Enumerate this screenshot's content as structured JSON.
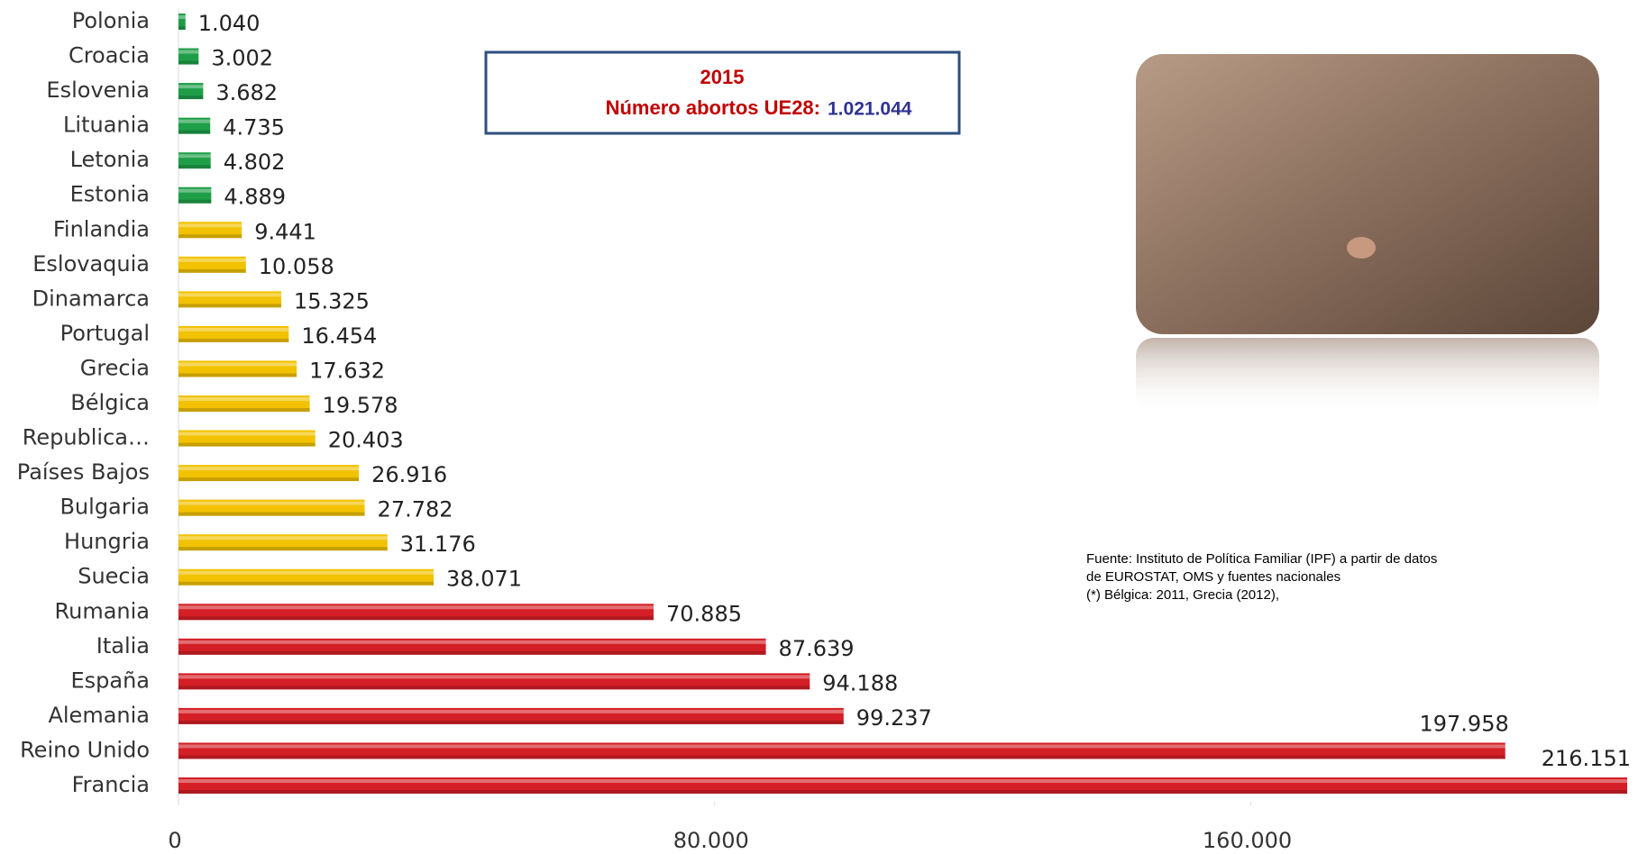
{
  "chart_data": {
    "type": "bar",
    "orientation": "horizontal",
    "categories": [
      "Polonia",
      "Croacia",
      "Eslovenia",
      "Lituania",
      "Letonia",
      "Estonia",
      "Finlandia",
      "Eslovaquia",
      "Dinamarca",
      "Portugal",
      "Grecia",
      "Bélgica",
      "Republica…",
      "Países Bajos",
      "Bulgaria",
      "Hungria",
      "Suecia",
      "Rumania",
      "Italia",
      "España",
      "Alemania",
      "Reino Unido",
      "Francia"
    ],
    "values": [
      1040,
      3002,
      3682,
      4735,
      4802,
      4889,
      9441,
      10058,
      15325,
      16454,
      17632,
      19578,
      20403,
      26916,
      27782,
      31176,
      38071,
      70885,
      87639,
      94188,
      99237,
      197958,
      216151
    ],
    "value_labels": [
      "1.040",
      "3.002",
      "3.682",
      "4.735",
      "4.802",
      "4.889",
      "9.441",
      "10.058",
      "15.325",
      "16.454",
      "17.632",
      "19.578",
      "20.403",
      "26.916",
      "27.782",
      "31.176",
      "38.071",
      "70.885",
      "87.639",
      "94.188",
      "99.237",
      "197.958",
      "216.151"
    ],
    "colors": [
      "#1f9e48",
      "#1f9e48",
      "#1f9e48",
      "#1f9e48",
      "#1f9e48",
      "#1f9e48",
      "#f2c200",
      "#f2c200",
      "#f2c200",
      "#f2c200",
      "#f2c200",
      "#f2c200",
      "#f2c200",
      "#f2c200",
      "#f2c200",
      "#f2c200",
      "#f2c200",
      "#d41f26",
      "#d41f26",
      "#d41f26",
      "#d41f26",
      "#d41f26",
      "#d41f26"
    ],
    "xlim": [
      0,
      216151
    ],
    "xticks": [
      0,
      {
        "value": 80000,
        "label": "80.000"
      },
      {
        "value": 160000,
        "label": "160.000"
      }
    ],
    "annotation": {
      "year": "2015",
      "label": "Número abortos UE28:",
      "total": "1.021.044"
    },
    "source": [
      "Fuente: Instituto de Política Familiar (IPF) a partir de datos",
      "de EUROSTAT, OMS y fuentes nacionales",
      "(*) Bélgica: 2011, Grecia (2012),"
    ]
  }
}
